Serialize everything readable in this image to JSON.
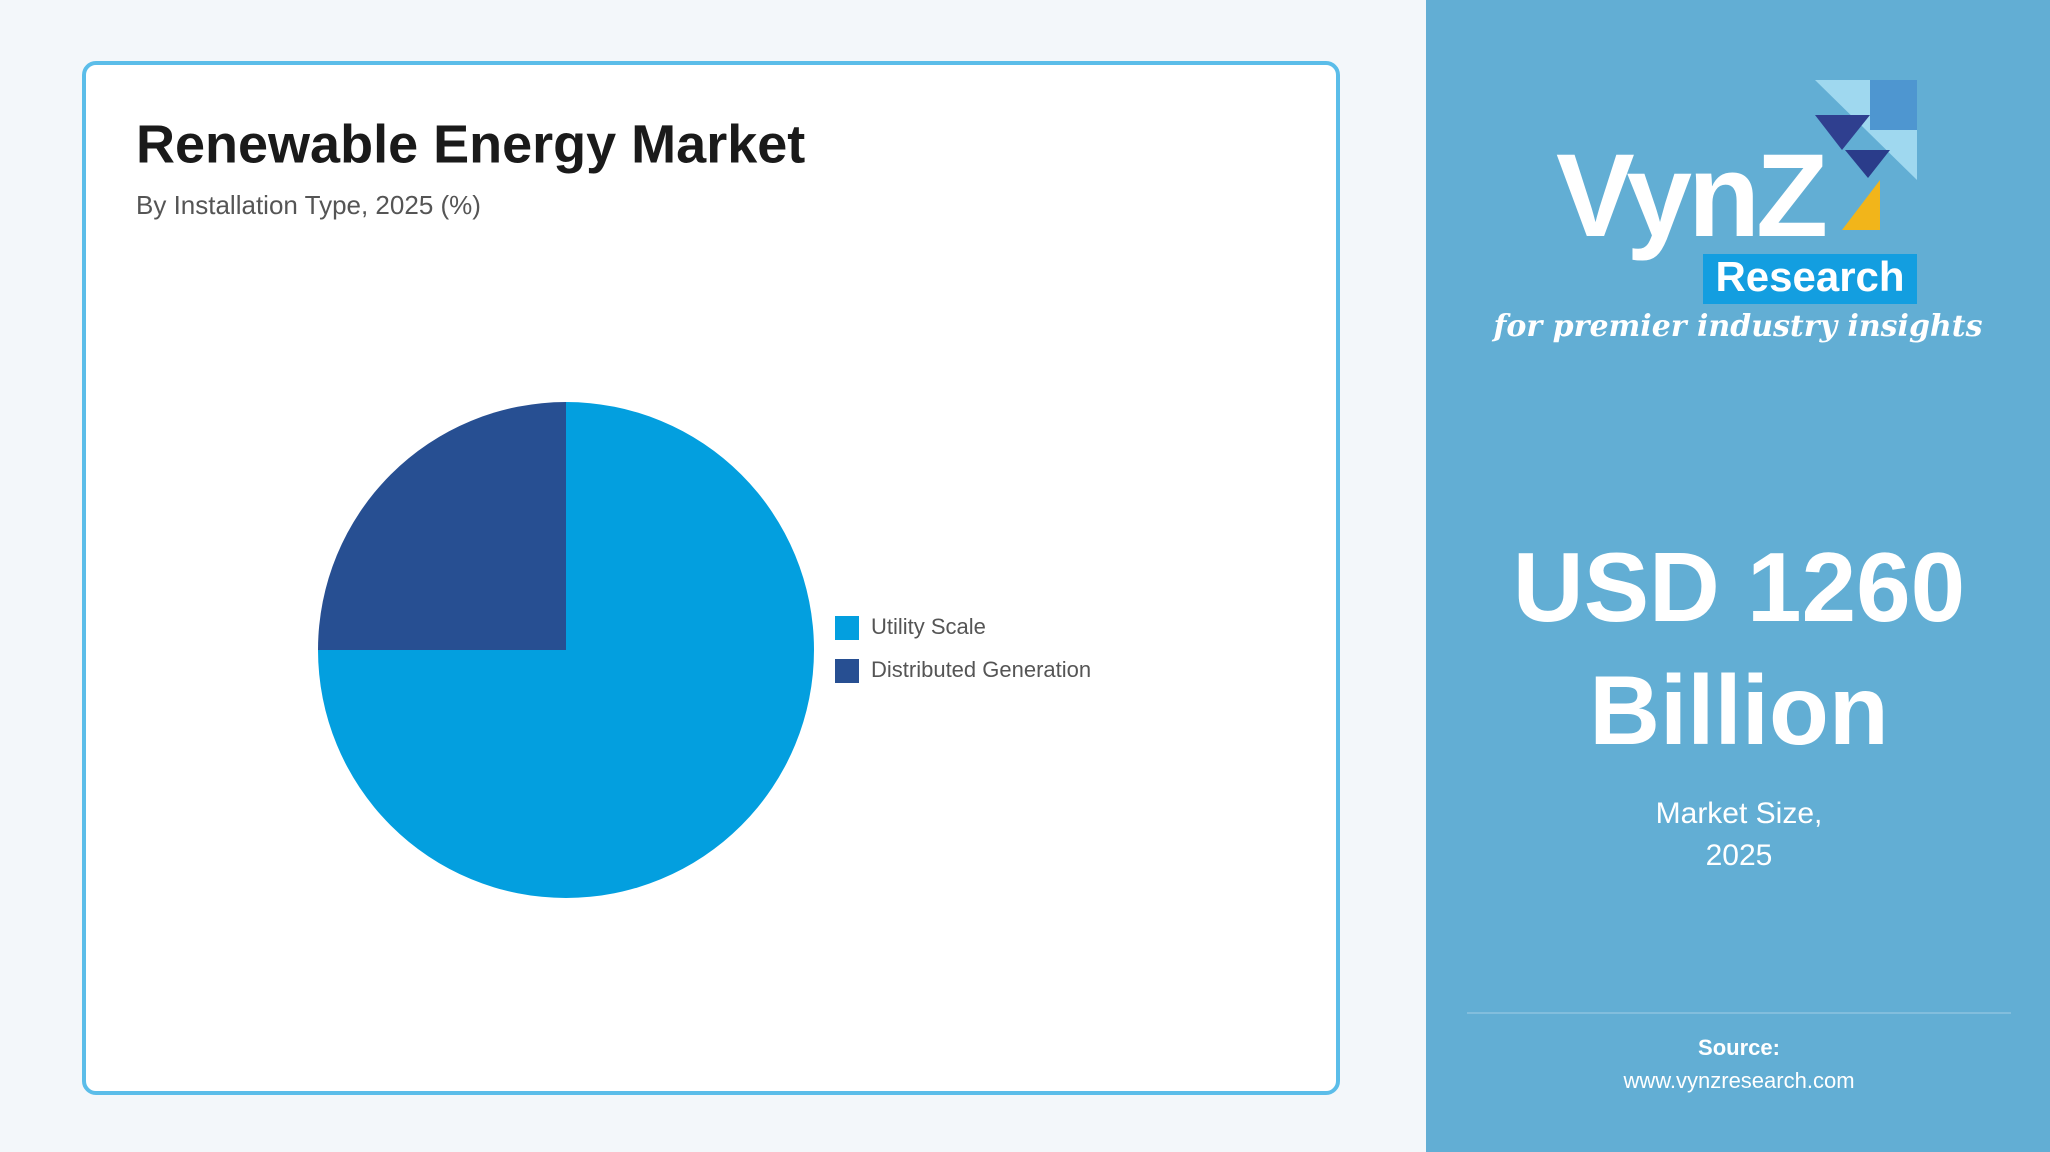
{
  "chart_data": {
    "type": "pie",
    "title": "Renewable Energy Market",
    "subtitle": "By Installation Type, 2025 (%)",
    "categories": [
      "Utility Scale",
      "Distributed Generation"
    ],
    "values": [
      75,
      25
    ],
    "colors": [
      "#039fdf",
      "#274f92"
    ],
    "legend": "right"
  },
  "logo": {
    "name": "VynZ",
    "badge": "Research",
    "tagline": "for premier industry insights"
  },
  "headline": {
    "line1": "USD 1260",
    "line2": "Billion",
    "caption1": "Market Size,",
    "caption2": "2025"
  },
  "source": {
    "label": "Source:",
    "url": "www.vynzresearch.com"
  }
}
